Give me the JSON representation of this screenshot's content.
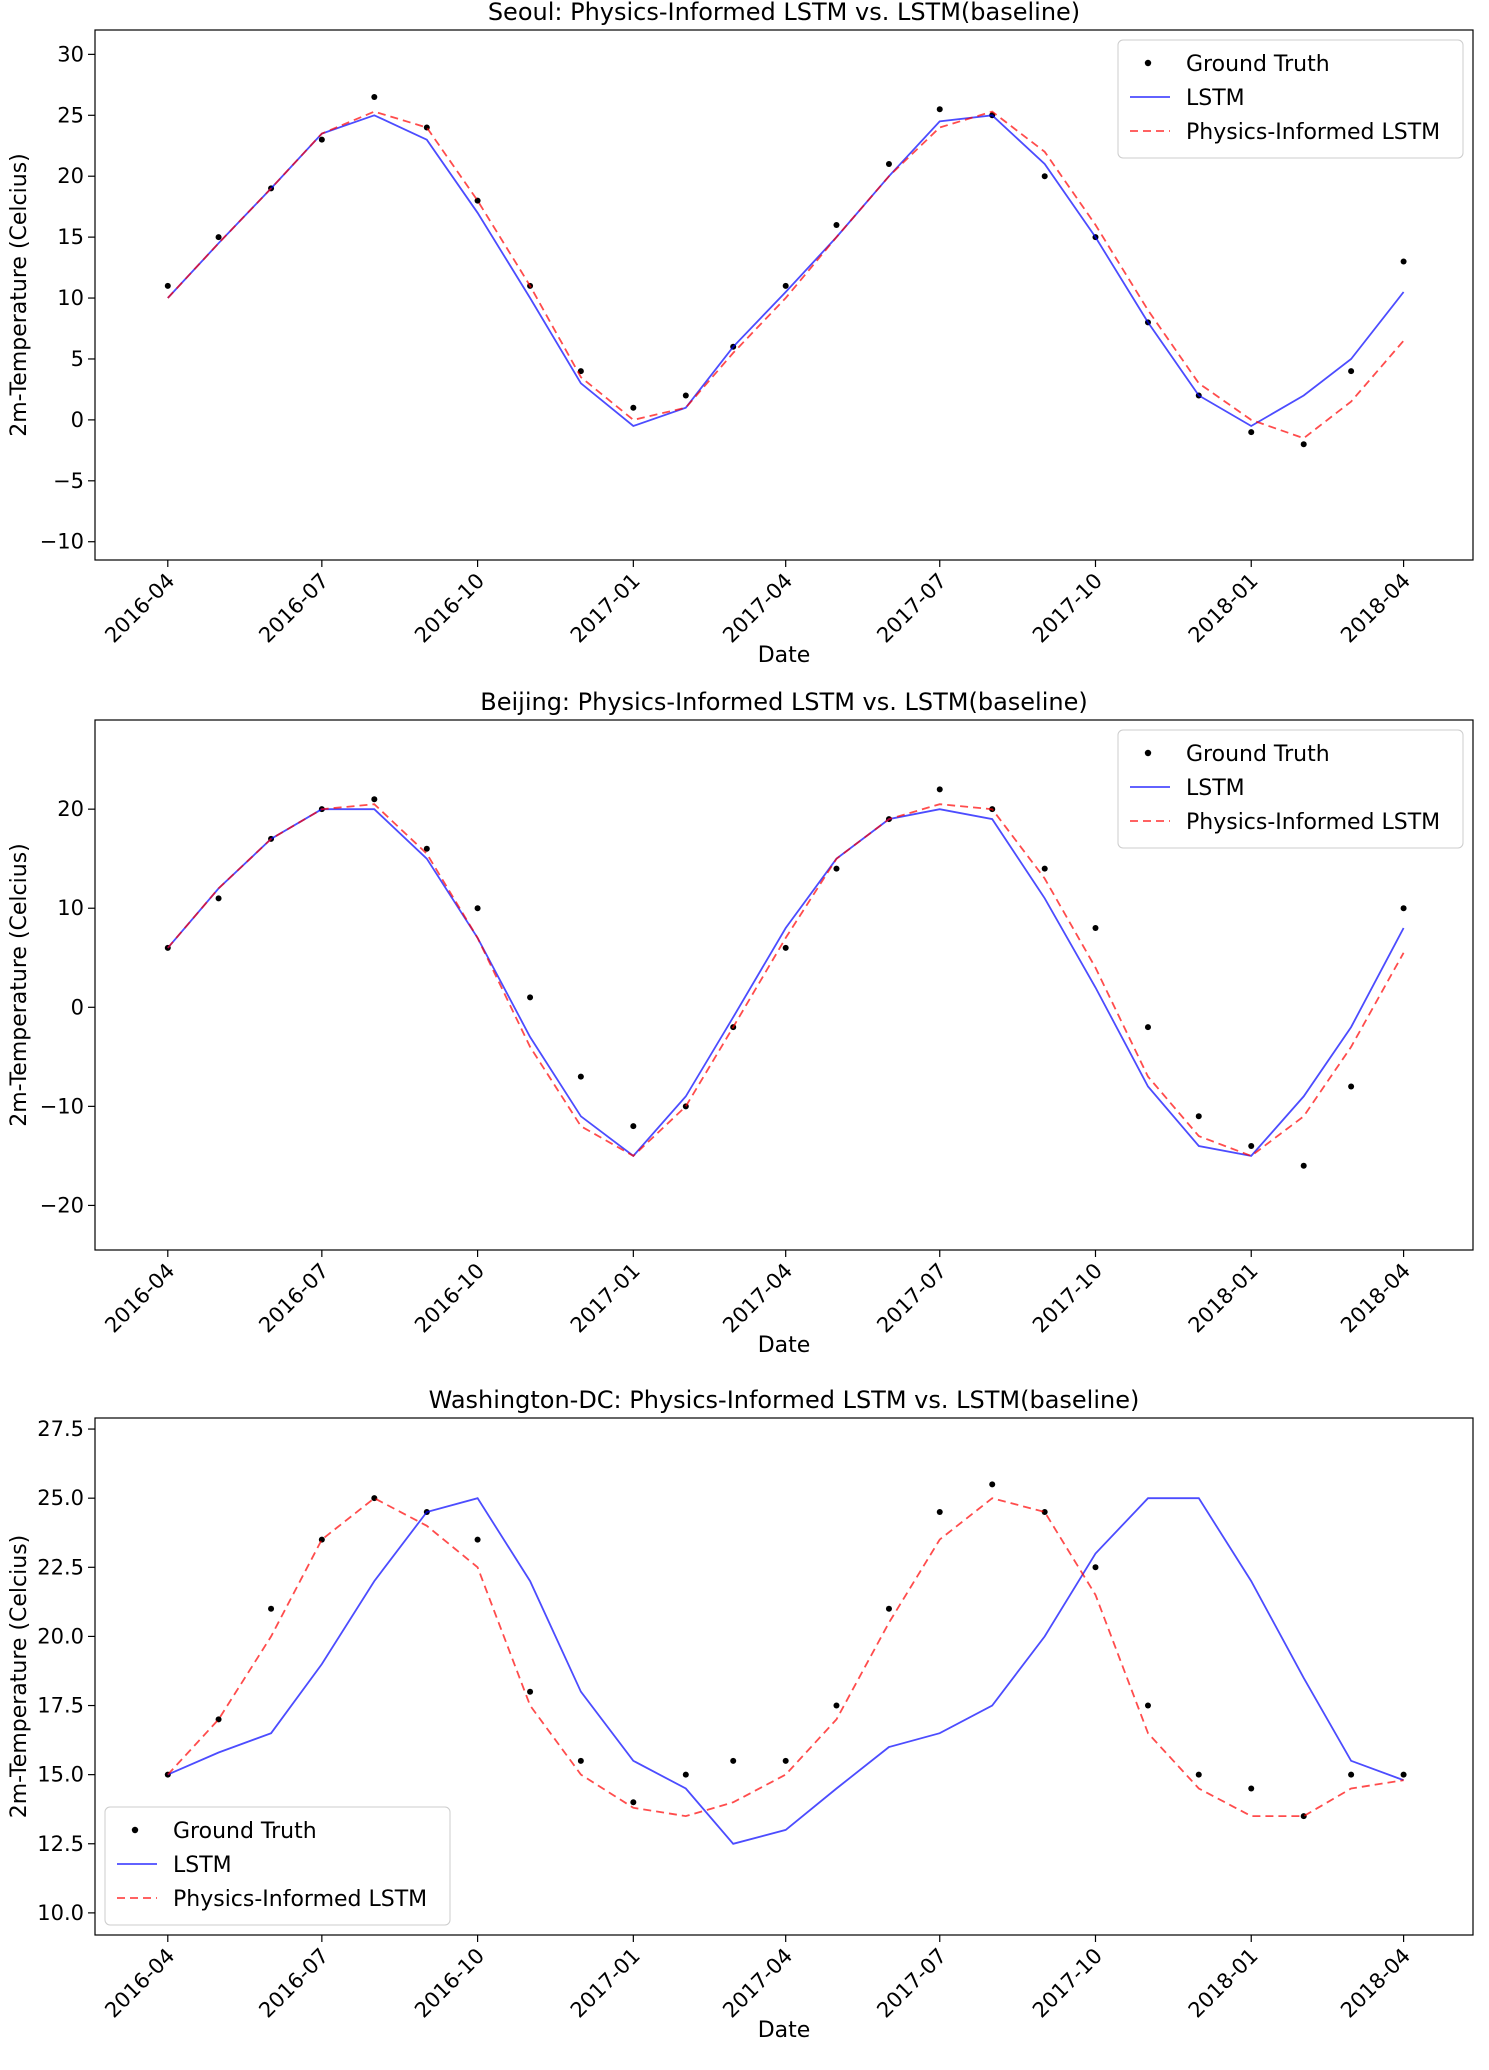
{
  "chart_data": [
    {
      "type": "line",
      "title": "Seoul: Physics-Informed LSTM vs. LSTM(baseline)",
      "xlabel": "Date",
      "ylabel": "2m-Temperature (Celcius)",
      "x_ticks": [
        "2016-04",
        "2016-07",
        "2016-10",
        "2017-01",
        "2017-04",
        "2017-07",
        "2017-10",
        "2018-01",
        "2018-04"
      ],
      "xlim": [
        "2016-02-18",
        "2018-05-12"
      ],
      "ylim": [
        -11.5,
        32.0
      ],
      "y_ticks": [
        30,
        25,
        20,
        15,
        10,
        5,
        0,
        -5,
        -10
      ],
      "y_tick_labels": [
        "30",
        "25",
        "20",
        "15",
        "10",
        "5",
        "0",
        "−5",
        "−10"
      ],
      "legend": {
        "position": "top-right",
        "entries": [
          "Ground Truth",
          "LSTM",
          "Physics-Informed LSTM"
        ]
      },
      "colors": {
        "truth": "#000000",
        "lstm": "#0000ff",
        "pinn": "#ff0000"
      },
      "series": [
        {
          "name": "Ground Truth",
          "style": "points",
          "x": [
            "2016-04-01",
            "2016-05-01",
            "2016-06-01",
            "2016-07-01",
            "2016-08-01",
            "2016-09-01",
            "2016-10-01",
            "2016-11-01",
            "2016-12-01",
            "2017-01-01",
            "2017-02-01",
            "2017-03-01",
            "2017-04-01",
            "2017-05-01",
            "2017-06-01",
            "2017-07-01",
            "2017-08-01",
            "2017-09-01",
            "2017-10-01",
            "2017-11-01",
            "2017-12-01",
            "2018-01-01",
            "2018-02-01",
            "2018-03-01",
            "2018-04-01"
          ],
          "values": [
            11,
            15,
            19,
            23,
            26.5,
            24,
            18,
            11,
            4,
            1,
            2,
            6,
            11,
            16,
            21,
            25.5,
            25,
            20,
            15,
            8,
            2,
            -1,
            -2,
            4,
            13
          ]
        },
        {
          "name": "LSTM",
          "style": "line",
          "x": [
            "2016-04-01",
            "2016-05-01",
            "2016-06-01",
            "2016-07-01",
            "2016-08-01",
            "2016-09-01",
            "2016-10-01",
            "2016-11-01",
            "2016-12-01",
            "2017-01-01",
            "2017-02-01",
            "2017-03-01",
            "2017-04-01",
            "2017-05-01",
            "2017-06-01",
            "2017-07-01",
            "2017-08-01",
            "2017-09-01",
            "2017-10-01",
            "2017-11-01",
            "2017-12-01",
            "2018-01-01",
            "2018-02-01",
            "2018-03-01",
            "2018-04-01"
          ],
          "values": [
            10,
            14.5,
            19,
            23.5,
            25,
            23,
            17,
            10,
            3,
            -0.5,
            1,
            6,
            10.5,
            15,
            20,
            24.5,
            25,
            21,
            15,
            8,
            2,
            -0.5,
            2,
            5,
            10.5
          ]
        },
        {
          "name": "Physics-Informed LSTM",
          "style": "dashed",
          "x": [
            "2016-04-01",
            "2016-05-01",
            "2016-06-01",
            "2016-07-01",
            "2016-08-01",
            "2016-09-01",
            "2016-10-01",
            "2016-11-01",
            "2016-12-01",
            "2017-01-01",
            "2017-02-01",
            "2017-03-01",
            "2017-04-01",
            "2017-05-01",
            "2017-06-01",
            "2017-07-01",
            "2017-08-01",
            "2017-09-01",
            "2017-10-01",
            "2017-11-01",
            "2017-12-01",
            "2018-01-01",
            "2018-02-01",
            "2018-03-01",
            "2018-04-01"
          ],
          "values": [
            10,
            14.5,
            19,
            23.5,
            25.3,
            24,
            18,
            11,
            3.5,
            0,
            1,
            5.5,
            10,
            15,
            20,
            24,
            25.3,
            22,
            16,
            9,
            3,
            0,
            -1.5,
            1.5,
            6.5
          ]
        }
      ]
    },
    {
      "type": "line",
      "title": "Beijing: Physics-Informed LSTM vs. LSTM(baseline)",
      "xlabel": "Date",
      "ylabel": "2m-Temperature (Celcius)",
      "x_ticks": [
        "2016-04",
        "2016-07",
        "2016-10",
        "2017-01",
        "2017-04",
        "2017-07",
        "2017-10",
        "2018-01",
        "2018-04"
      ],
      "xlim": [
        "2016-02-18",
        "2018-05-12"
      ],
      "ylim": [
        -24.5,
        29.0
      ],
      "y_ticks": [
        20,
        10,
        0,
        -10,
        -20
      ],
      "y_tick_labels": [
        "20",
        "10",
        "0",
        "−10",
        "−20"
      ],
      "legend": {
        "position": "top-right",
        "entries": [
          "Ground Truth",
          "LSTM",
          "Physics-Informed LSTM"
        ]
      },
      "colors": {
        "truth": "#000000",
        "lstm": "#0000ff",
        "pinn": "#ff0000"
      },
      "series": [
        {
          "name": "Ground Truth",
          "style": "points",
          "x": [
            "2016-04-01",
            "2016-05-01",
            "2016-06-01",
            "2016-07-01",
            "2016-08-01",
            "2016-09-01",
            "2016-10-01",
            "2016-11-01",
            "2016-12-01",
            "2017-01-01",
            "2017-02-01",
            "2017-03-01",
            "2017-04-01",
            "2017-05-01",
            "2017-06-01",
            "2017-07-01",
            "2017-08-01",
            "2017-09-01",
            "2017-10-01",
            "2017-11-01",
            "2017-12-01",
            "2018-01-01",
            "2018-02-01",
            "2018-03-01",
            "2018-04-01"
          ],
          "values": [
            6,
            11,
            17,
            20,
            21,
            16,
            10,
            1,
            -7,
            -12,
            -10,
            -2,
            6,
            14,
            19,
            22,
            20,
            14,
            8,
            -2,
            -11,
            -14,
            -16,
            -8,
            10
          ]
        },
        {
          "name": "LSTM",
          "style": "line",
          "x": [
            "2016-04-01",
            "2016-05-01",
            "2016-06-01",
            "2016-07-01",
            "2016-08-01",
            "2016-09-01",
            "2016-10-01",
            "2016-11-01",
            "2016-12-01",
            "2017-01-01",
            "2017-02-01",
            "2017-03-01",
            "2017-04-01",
            "2017-05-01",
            "2017-06-01",
            "2017-07-01",
            "2017-08-01",
            "2017-09-01",
            "2017-10-01",
            "2017-11-01",
            "2017-12-01",
            "2018-01-01",
            "2018-02-01",
            "2018-03-01",
            "2018-04-01"
          ],
          "values": [
            6,
            12,
            17,
            20,
            20,
            15,
            7,
            -3,
            -11,
            -15,
            -9,
            -1,
            8,
            15,
            19,
            20,
            19,
            11,
            2,
            -8,
            -14,
            -15,
            -9,
            -2,
            8
          ]
        },
        {
          "name": "Physics-Informed LSTM",
          "style": "dashed",
          "x": [
            "2016-04-01",
            "2016-05-01",
            "2016-06-01",
            "2016-07-01",
            "2016-08-01",
            "2016-09-01",
            "2016-10-01",
            "2016-11-01",
            "2016-12-01",
            "2017-01-01",
            "2017-02-01",
            "2017-03-01",
            "2017-04-01",
            "2017-05-01",
            "2017-06-01",
            "2017-07-01",
            "2017-08-01",
            "2017-09-01",
            "2017-10-01",
            "2017-11-01",
            "2017-12-01",
            "2018-01-01",
            "2018-02-01",
            "2018-03-01",
            "2018-04-01"
          ],
          "values": [
            6,
            12,
            17,
            20,
            20.5,
            15.5,
            7,
            -4,
            -12,
            -15,
            -10,
            -2,
            7,
            15,
            19,
            20.5,
            20,
            13,
            4,
            -7,
            -13,
            -15,
            -11,
            -4,
            5.5
          ]
        }
      ]
    },
    {
      "type": "line",
      "title": "Washington-DC: Physics-Informed LSTM vs. LSTM(baseline)",
      "xlabel": "Date",
      "ylabel": "2m-Temperature (Celcius)",
      "x_ticks": [
        "2016-04",
        "2016-07",
        "2016-10",
        "2017-01",
        "2017-04",
        "2017-07",
        "2017-10",
        "2018-01",
        "2018-04"
      ],
      "xlim": [
        "2016-02-18",
        "2018-05-12"
      ],
      "ylim": [
        9.2,
        27.9
      ],
      "y_ticks": [
        27.5,
        25.0,
        22.5,
        20.0,
        17.5,
        15.0,
        12.5,
        10.0
      ],
      "y_tick_labels": [
        "27.5",
        "25.0",
        "22.5",
        "20.0",
        "17.5",
        "15.0",
        "12.5",
        "10.0"
      ],
      "legend": {
        "position": "bottom-left",
        "entries": [
          "Ground Truth",
          "LSTM",
          "Physics-Informed LSTM"
        ]
      },
      "colors": {
        "truth": "#000000",
        "lstm": "#0000ff",
        "pinn": "#ff0000"
      },
      "series": [
        {
          "name": "Ground Truth",
          "style": "points",
          "x": [
            "2016-04-01",
            "2016-05-01",
            "2016-06-01",
            "2016-07-01",
            "2016-08-01",
            "2016-09-01",
            "2016-10-01",
            "2016-11-01",
            "2016-12-01",
            "2017-01-01",
            "2017-02-01",
            "2017-03-01",
            "2017-04-01",
            "2017-05-01",
            "2017-06-01",
            "2017-07-01",
            "2017-08-01",
            "2017-09-01",
            "2017-10-01",
            "2017-11-01",
            "2017-12-01",
            "2018-01-01",
            "2018-02-01",
            "2018-03-01",
            "2018-04-01"
          ],
          "values": [
            15,
            17,
            21,
            23.5,
            25,
            24.5,
            23.5,
            18,
            15.5,
            14,
            15,
            15.5,
            15.5,
            17.5,
            21,
            24.5,
            25.5,
            24.5,
            22.5,
            17.5,
            15,
            14.5,
            13.5,
            15,
            15
          ]
        },
        {
          "name": "LSTM",
          "style": "line",
          "x": [
            "2016-04-01",
            "2016-05-01",
            "2016-06-01",
            "2016-07-01",
            "2016-08-01",
            "2016-09-01",
            "2016-10-01",
            "2016-11-01",
            "2016-12-01",
            "2017-01-01",
            "2017-02-01",
            "2017-03-01",
            "2017-04-01",
            "2017-05-01",
            "2017-06-01",
            "2017-07-01",
            "2017-08-01",
            "2017-09-01",
            "2017-10-01",
            "2017-11-01",
            "2017-12-01",
            "2018-01-01",
            "2018-02-01",
            "2018-03-01",
            "2018-04-01"
          ],
          "values": [
            15,
            15.8,
            16.5,
            19,
            22,
            24.5,
            25,
            22,
            18,
            15.5,
            14.5,
            12.5,
            13,
            14.5,
            16,
            16.5,
            17.5,
            20,
            23,
            25,
            25,
            22,
            18.5,
            15.5,
            14.8
          ]
        },
        {
          "name": "Physics-Informed LSTM",
          "style": "dashed",
          "x": [
            "2016-04-01",
            "2016-05-01",
            "2016-06-01",
            "2016-07-01",
            "2016-08-01",
            "2016-09-01",
            "2016-10-01",
            "2016-11-01",
            "2016-12-01",
            "2017-01-01",
            "2017-02-01",
            "2017-03-01",
            "2017-04-01",
            "2017-05-01",
            "2017-06-01",
            "2017-07-01",
            "2017-08-01",
            "2017-09-01",
            "2017-10-01",
            "2017-11-01",
            "2017-12-01",
            "2018-01-01",
            "2018-02-01",
            "2018-03-01",
            "2018-04-01"
          ],
          "values": [
            15,
            17,
            20,
            23.5,
            25,
            24,
            22.5,
            17.5,
            15,
            13.8,
            13.5,
            14,
            15,
            17,
            20.5,
            23.5,
            25,
            24.5,
            21.5,
            16.5,
            14.5,
            13.5,
            13.5,
            14.5,
            14.8
          ]
        }
      ]
    }
  ]
}
